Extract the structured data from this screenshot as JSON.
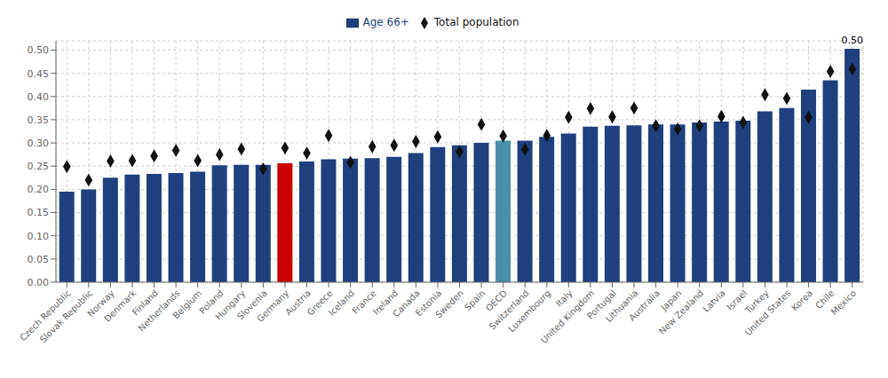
{
  "chart_data": {
    "type": "bar",
    "categories": [
      "Czech Republic",
      "Slovak Republic",
      "Norway",
      "Denmark",
      "Finland",
      "Netherlands",
      "Belgium",
      "Poland",
      "Hungary",
      "Slovenia",
      "Germany",
      "Austria",
      "Greece",
      "Iceland",
      "France",
      "Ireland",
      "Canada",
      "Estonia",
      "Sweden",
      "Spain",
      "OECD",
      "Switzerland",
      "Luxembourg",
      "Italy",
      "United Kingdom",
      "Portugal",
      "Lithuania",
      "Australia",
      "Japan",
      "New Zealand",
      "Latvia",
      "Israel",
      "Turkey",
      "United States",
      "Korea",
      "Chile",
      "Mexico"
    ],
    "series": [
      {
        "name": "Age 66+",
        "type": "bar",
        "color": "#1f3f7f",
        "colors": [
          "#1f3f7f",
          "#1f3f7f",
          "#1f3f7f",
          "#1f3f7f",
          "#1f3f7f",
          "#1f3f7f",
          "#1f3f7f",
          "#1f3f7f",
          "#1f3f7f",
          "#1f3f7f",
          "#cc0000",
          "#1f3f7f",
          "#1f3f7f",
          "#1f3f7f",
          "#1f3f7f",
          "#1f3f7f",
          "#1f3f7f",
          "#1f3f7f",
          "#1f3f7f",
          "#1f3f7f",
          "#4a8fa8",
          "#1f3f7f",
          "#1f3f7f",
          "#1f3f7f",
          "#1f3f7f",
          "#1f3f7f",
          "#1f3f7f",
          "#1f3f7f",
          "#1f3f7f",
          "#1f3f7f",
          "#1f3f7f",
          "#1f3f7f",
          "#1f3f7f",
          "#1f3f7f",
          "#1f3f7f",
          "#1f3f7f",
          "#1f3f7f"
        ],
        "values": [
          0.195,
          0.2,
          0.225,
          0.232,
          0.233,
          0.235,
          0.238,
          0.252,
          0.253,
          0.253,
          0.256,
          0.26,
          0.265,
          0.266,
          0.267,
          0.27,
          0.278,
          0.291,
          0.295,
          0.3,
          0.305,
          0.305,
          0.313,
          0.32,
          0.335,
          0.337,
          0.338,
          0.34,
          0.34,
          0.344,
          0.346,
          0.348,
          0.368,
          0.375,
          0.415,
          0.435,
          0.503
        ]
      },
      {
        "name": "Total population",
        "type": "scatter",
        "marker": "diamond",
        "color": "#111111",
        "values": [
          0.249,
          0.22,
          0.261,
          0.262,
          0.272,
          0.284,
          0.262,
          0.275,
          0.287,
          0.244,
          0.289,
          0.278,
          0.316,
          0.258,
          0.292,
          0.295,
          0.303,
          0.313,
          0.281,
          0.34,
          0.315,
          0.286,
          0.316,
          0.355,
          0.374,
          0.356,
          0.375,
          0.337,
          0.33,
          0.337,
          0.357,
          0.344,
          0.404,
          0.396,
          0.355,
          0.454,
          0.459
        ]
      }
    ],
    "ylim": [
      0.0,
      0.52
    ],
    "yticks": [
      {
        "value": 0.0,
        "label": "0.00"
      },
      0.05,
      {
        "value": 0.1,
        "label": "0.10"
      },
      0.15,
      {
        "value": 0.2,
        "label": "0.20"
      },
      0.25,
      {
        "value": 0.3,
        "label": "0.30"
      },
      0.35,
      {
        "value": 0.4,
        "label": "0.40"
      },
      0.45,
      {
        "value": 0.5,
        "label": "0.50"
      }
    ],
    "grid": true,
    "legend": "top",
    "annotations": [
      {
        "text": "0.50",
        "x": "Mexico",
        "y": 0.505
      }
    ]
  }
}
